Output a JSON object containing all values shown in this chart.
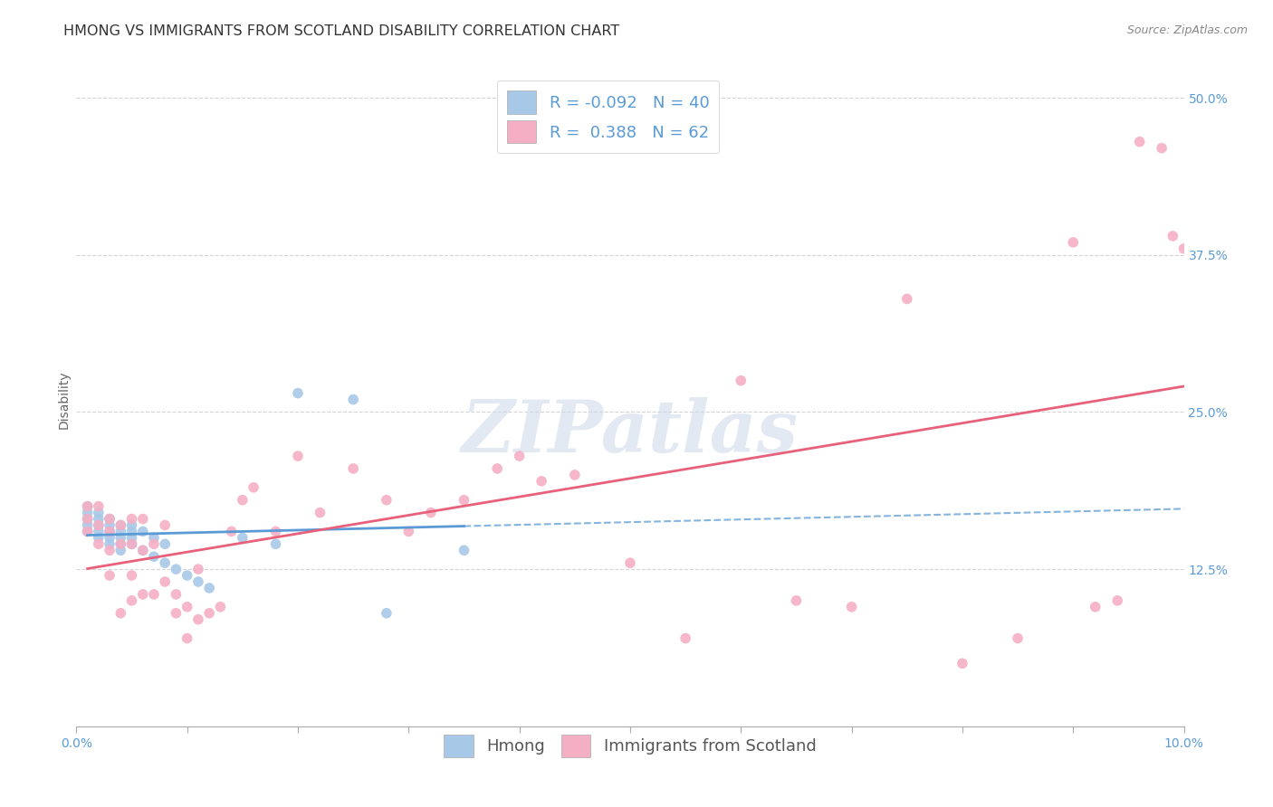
{
  "title": "HMONG VS IMMIGRANTS FROM SCOTLAND DISABILITY CORRELATION CHART",
  "source": "Source: ZipAtlas.com",
  "ylabel": "Disability",
  "xlim": [
    0.0,
    0.1
  ],
  "ylim": [
    0.0,
    0.52
  ],
  "xticks": [
    0.0,
    0.01,
    0.02,
    0.03,
    0.04,
    0.05,
    0.06,
    0.07,
    0.08,
    0.09,
    0.1
  ],
  "yticks": [
    0.0,
    0.125,
    0.25,
    0.375,
    0.5
  ],
  "hmong_R": -0.092,
  "hmong_N": 40,
  "scotland_R": 0.388,
  "scotland_N": 62,
  "hmong_color": "#a8c8e8",
  "scotland_color": "#f4afc4",
  "hmong_line_color": "#5b9bd5",
  "scotland_line_color": "#e8607a",
  "tick_color": "#5b9bd5",
  "background_color": "#ffffff",
  "grid_color": "#d0d0d0",
  "watermark": "ZIPatlas",
  "hmong_x": [
    0.001,
    0.001,
    0.001,
    0.001,
    0.001,
    0.002,
    0.002,
    0.002,
    0.002,
    0.002,
    0.003,
    0.003,
    0.003,
    0.003,
    0.003,
    0.004,
    0.004,
    0.004,
    0.004,
    0.004,
    0.005,
    0.005,
    0.005,
    0.005,
    0.006,
    0.006,
    0.007,
    0.007,
    0.008,
    0.008,
    0.009,
    0.01,
    0.011,
    0.012,
    0.015,
    0.018,
    0.02,
    0.025,
    0.028,
    0.035
  ],
  "hmong_y": [
    0.155,
    0.16,
    0.165,
    0.17,
    0.175,
    0.15,
    0.155,
    0.16,
    0.165,
    0.17,
    0.145,
    0.15,
    0.155,
    0.16,
    0.165,
    0.14,
    0.145,
    0.15,
    0.155,
    0.16,
    0.145,
    0.15,
    0.155,
    0.16,
    0.14,
    0.155,
    0.135,
    0.15,
    0.13,
    0.145,
    0.125,
    0.12,
    0.115,
    0.11,
    0.15,
    0.145,
    0.265,
    0.26,
    0.09,
    0.14
  ],
  "scotland_x": [
    0.001,
    0.001,
    0.001,
    0.002,
    0.002,
    0.002,
    0.003,
    0.003,
    0.003,
    0.003,
    0.004,
    0.004,
    0.004,
    0.005,
    0.005,
    0.005,
    0.005,
    0.006,
    0.006,
    0.006,
    0.007,
    0.007,
    0.008,
    0.008,
    0.009,
    0.009,
    0.01,
    0.01,
    0.011,
    0.011,
    0.012,
    0.013,
    0.014,
    0.015,
    0.016,
    0.018,
    0.02,
    0.022,
    0.025,
    0.028,
    0.03,
    0.032,
    0.035,
    0.038,
    0.04,
    0.042,
    0.045,
    0.05,
    0.055,
    0.06,
    0.065,
    0.07,
    0.075,
    0.08,
    0.085,
    0.09,
    0.092,
    0.094,
    0.096,
    0.098,
    0.099,
    0.1
  ],
  "scotland_y": [
    0.155,
    0.165,
    0.175,
    0.145,
    0.16,
    0.175,
    0.12,
    0.14,
    0.155,
    0.165,
    0.09,
    0.145,
    0.16,
    0.1,
    0.12,
    0.145,
    0.165,
    0.105,
    0.14,
    0.165,
    0.105,
    0.145,
    0.115,
    0.16,
    0.09,
    0.105,
    0.07,
    0.095,
    0.085,
    0.125,
    0.09,
    0.095,
    0.155,
    0.18,
    0.19,
    0.155,
    0.215,
    0.17,
    0.205,
    0.18,
    0.155,
    0.17,
    0.18,
    0.205,
    0.215,
    0.195,
    0.2,
    0.13,
    0.07,
    0.275,
    0.1,
    0.095,
    0.34,
    0.05,
    0.07,
    0.385,
    0.095,
    0.1,
    0.465,
    0.46,
    0.39,
    0.38
  ],
  "title_fontsize": 11.5,
  "axis_label_fontsize": 10,
  "tick_fontsize": 10,
  "legend_fontsize": 13
}
